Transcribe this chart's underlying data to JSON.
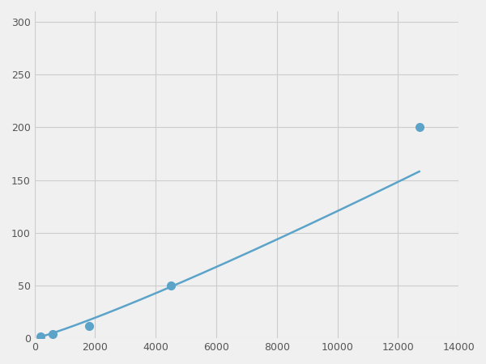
{
  "x_data": [
    200,
    600,
    1800,
    4500,
    12700
  ],
  "y_data": [
    2,
    4,
    12,
    50,
    200
  ],
  "line_color": "#5ba3c9",
  "marker_color": "#5ba3c9",
  "marker_size": 7,
  "line_width": 1.8,
  "xlim": [
    0,
    14000
  ],
  "ylim": [
    0,
    310
  ],
  "xticks": [
    0,
    2000,
    4000,
    6000,
    8000,
    10000,
    12000,
    14000
  ],
  "yticks": [
    0,
    50,
    100,
    150,
    200,
    250,
    300
  ],
  "grid_color": "#cccccc",
  "grid_linewidth": 0.8,
  "background_color": "#ffffff",
  "figure_background": "#f0f0f0"
}
